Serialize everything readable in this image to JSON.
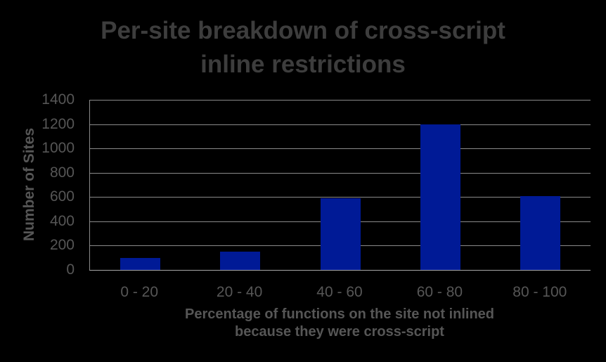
{
  "chart_data": {
    "type": "bar",
    "title": "Per-site breakdown of cross-script inline restrictions",
    "title_lines": [
      "Per-site breakdown of cross-script",
      "inline restrictions"
    ],
    "categories": [
      "0 - 20",
      "20 - 40",
      "40 - 60",
      "60 - 80",
      "80 - 100"
    ],
    "values": [
      100,
      150,
      590,
      1200,
      610
    ],
    "xlabel": "Percentage of functions on the site not inlined because they were cross-script",
    "xlabel_lines": [
      "Percentage of functions on the site not inlined",
      "because they were cross-script"
    ],
    "ylabel": "Number of Sites",
    "ylim": [
      0,
      1400
    ],
    "yticks": [
      0,
      200,
      400,
      600,
      800,
      1000,
      1200,
      1400
    ],
    "grid": true,
    "legend_position": "none",
    "colors": {
      "background": "#000000",
      "bar": "#001a96",
      "gridline": "#8a8a8a",
      "axis_line": "#a6a6a6",
      "title_text": "#3d3d3d",
      "axis_text": "#565656"
    }
  }
}
